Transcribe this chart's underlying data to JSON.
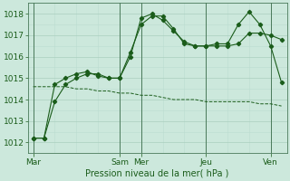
{
  "bg_color": "#cce8dc",
  "grid_color_major": "#aacfbf",
  "grid_color_minor": "#bbddd0",
  "line_color": "#1a5c1a",
  "ylabel": "Pression niveau de la mer( hPa )",
  "ylim": [
    1011.5,
    1018.5
  ],
  "yticks": [
    1012,
    1013,
    1014,
    1015,
    1016,
    1017,
    1018
  ],
  "xtick_labels": [
    "Mar",
    "Sam",
    "Mer",
    "Jeu",
    "Ven"
  ],
  "xtick_positions": [
    0,
    8,
    10,
    16,
    22
  ],
  "xlim": [
    -0.5,
    23.5
  ],
  "series1_x": [
    0,
    1,
    2,
    3,
    4,
    5,
    6,
    7,
    8,
    9,
    10,
    11,
    12,
    13,
    14,
    15,
    16,
    17,
    18,
    19,
    20,
    21,
    22,
    23
  ],
  "series1_y": [
    1012.2,
    1012.2,
    1013.9,
    1014.7,
    1015.0,
    1015.2,
    1015.2,
    1015.0,
    1015.0,
    1016.0,
    1017.8,
    1018.0,
    1017.7,
    1017.2,
    1016.7,
    1016.5,
    1016.5,
    1016.5,
    1016.5,
    1016.6,
    1017.1,
    1017.1,
    1017.0,
    1016.8
  ],
  "series2_x": [
    0,
    1,
    2,
    3,
    4,
    5,
    6,
    7,
    8,
    9,
    10,
    11,
    12,
    13,
    14,
    15,
    16,
    17,
    18,
    19,
    20,
    21,
    22,
    23
  ],
  "series2_y": [
    1012.2,
    1012.2,
    1014.7,
    1015.0,
    1015.2,
    1015.3,
    1015.1,
    1015.0,
    1015.0,
    1016.2,
    1017.5,
    1017.9,
    1017.9,
    1017.3,
    1016.6,
    1016.5,
    1016.5,
    1016.6,
    1016.6,
    1017.5,
    1018.1,
    1017.5,
    1016.5,
    1014.8
  ],
  "series3_x": [
    0,
    1,
    2,
    3,
    4,
    5,
    6,
    7,
    8,
    9,
    10,
    11,
    12,
    13,
    14,
    15,
    16,
    17,
    18,
    19,
    20,
    21,
    22,
    23
  ],
  "series3_y": [
    1014.6,
    1014.6,
    1014.6,
    1014.6,
    1014.5,
    1014.5,
    1014.4,
    1014.4,
    1014.3,
    1014.3,
    1014.2,
    1014.2,
    1014.1,
    1014.0,
    1014.0,
    1014.0,
    1013.9,
    1013.9,
    1013.9,
    1013.9,
    1013.9,
    1013.8,
    1013.8,
    1013.7
  ],
  "vlines_x": [
    0,
    8,
    10,
    16,
    22
  ],
  "ylabel_fontsize": 7,
  "tick_fontsize": 6.5
}
